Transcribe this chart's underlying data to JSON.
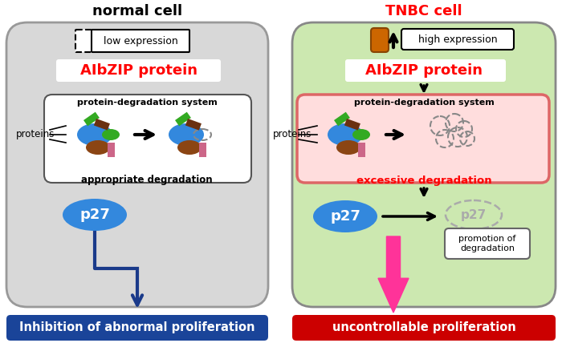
{
  "bg_color": "#ffffff",
  "left_cell_bg": "#d8d8d8",
  "right_cell_bg": "#cce8b0",
  "left_title": "normal cell",
  "right_title": "TNBC cell",
  "albzip_label": "AIbZIP protein",
  "albzip_color": "#ff0000",
  "proteins_label": "proteins",
  "pds_label": "protein-degradation system",
  "left_deg_label": "appropriate degradation",
  "right_deg_label": "excessive degradation",
  "right_deg_label_color": "#ff0000",
  "right_deg_box_fill": "#ffdddd",
  "right_deg_box_edge": "#dd6666",
  "p27_fill": "#3388dd",
  "p27_text": "p27",
  "promotion_label": "promotion of\ndegradation",
  "left_output_label": "Inhibition of abnormal proliferation",
  "right_output_label": "uncontrollable proliferation",
  "left_output_bg": "#1a4499",
  "right_output_bg": "#cc0000",
  "low_expr_label": "low expression",
  "high_expr_label": "high expression",
  "arrow_color_left": "#1a3a8a",
  "arrow_color_right": "#ff3399",
  "blue_oval_color": "#3388dd",
  "green_oval_color": "#33aa22",
  "brown_oval_color": "#8B4513",
  "pink_rect_color": "#cc6688",
  "green_rect_color": "#33aa22",
  "brown_rect_color": "#6B3010",
  "cylinder_color": "#cc6600"
}
